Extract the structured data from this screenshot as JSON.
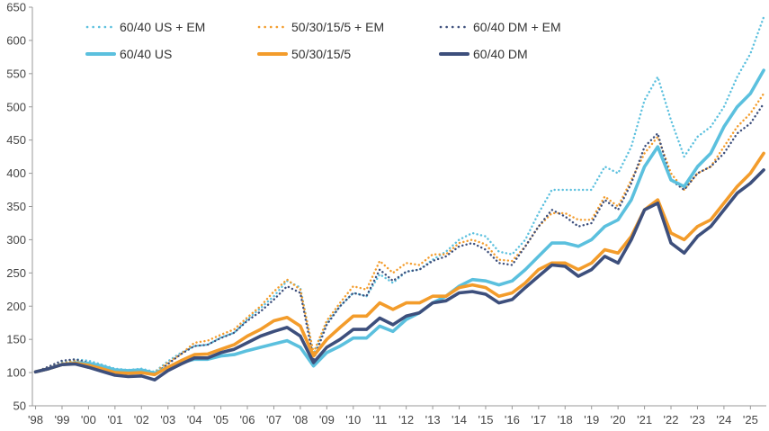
{
  "chart_data": {
    "type": "line",
    "title": "",
    "xlabel": "",
    "ylabel": "",
    "ylim": [
      50,
      650
    ],
    "yticks": [
      50,
      100,
      150,
      200,
      250,
      300,
      350,
      400,
      450,
      500,
      550,
      600,
      650
    ],
    "xlim": [
      1998,
      2025.6
    ],
    "xticks": [
      {
        "x": 1998,
        "label": "'98"
      },
      {
        "x": 1999,
        "label": "'99"
      },
      {
        "x": 2000,
        "label": "'00"
      },
      {
        "x": 2001,
        "label": "'01"
      },
      {
        "x": 2002,
        "label": "'02"
      },
      {
        "x": 2003,
        "label": "'03"
      },
      {
        "x": 2004,
        "label": "'04"
      },
      {
        "x": 2005,
        "label": "'05"
      },
      {
        "x": 2006,
        "label": "'06"
      },
      {
        "x": 2007,
        "label": "'07"
      },
      {
        "x": 2008,
        "label": "'08"
      },
      {
        "x": 2009,
        "label": "'09"
      },
      {
        "x": 2010,
        "label": "'10"
      },
      {
        "x": 2011,
        "label": "'11"
      },
      {
        "x": 2012,
        "label": "'12"
      },
      {
        "x": 2013,
        "label": "'13"
      },
      {
        "x": 2014,
        "label": "'14"
      },
      {
        "x": 2015,
        "label": "'15"
      },
      {
        "x": 2016,
        "label": "'16"
      },
      {
        "x": 2017,
        "label": "'17"
      },
      {
        "x": 2018,
        "label": "'18"
      },
      {
        "x": 2019,
        "label": "'19"
      },
      {
        "x": 2020,
        "label": "'20"
      },
      {
        "x": 2021,
        "label": "'21"
      },
      {
        "x": 2022,
        "label": "'22"
      },
      {
        "x": 2023,
        "label": "'23"
      },
      {
        "x": 2024,
        "label": "'24"
      },
      {
        "x": 2025,
        "label": "'25"
      }
    ],
    "grid": false,
    "legend_position": "top",
    "series": [
      {
        "name": "60/40 US + EM",
        "color": "#5bc0de",
        "style": "dotted",
        "x": [
          1998,
          1998.5,
          1999,
          1999.5,
          2000,
          2000.5,
          2001,
          2001.5,
          2002,
          2002.5,
          2003,
          2003.5,
          2004,
          2004.5,
          2005,
          2005.5,
          2006,
          2006.5,
          2007,
          2007.5,
          2008,
          2008.5,
          2009,
          2009.5,
          2010,
          2010.5,
          2011,
          2011.5,
          2012,
          2012.5,
          2013,
          2013.5,
          2014,
          2014.5,
          2015,
          2015.5,
          2016,
          2016.5,
          2017,
          2017.5,
          2018,
          2018.5,
          2019,
          2019.5,
          2020,
          2020.5,
          2021,
          2021.5,
          2022,
          2022.5,
          2023,
          2023.5,
          2024,
          2024.5,
          2025,
          2025.5
        ],
        "y": [
          101,
          108,
          116,
          120,
          118,
          112,
          106,
          104,
          106,
          101,
          117,
          130,
          140,
          142,
          153,
          160,
          180,
          197,
          215,
          238,
          228,
          128,
          175,
          200,
          220,
          215,
          248,
          235,
          252,
          255,
          270,
          282,
          300,
          310,
          305,
          282,
          278,
          300,
          340,
          375,
          375,
          375,
          375,
          410,
          400,
          440,
          510,
          545,
          480,
          425,
          455,
          470,
          500,
          545,
          580,
          635
        ]
      },
      {
        "name": "50/30/15/5 + EM",
        "color": "#f39c2b",
        "style": "dotted",
        "x": [
          1998,
          1998.5,
          1999,
          1999.5,
          2000,
          2000.5,
          2001,
          2001.5,
          2002,
          2002.5,
          2003,
          2003.5,
          2004,
          2004.5,
          2005,
          2005.5,
          2006,
          2006.5,
          2007,
          2007.5,
          2008,
          2008.5,
          2009,
          2009.5,
          2010,
          2010.5,
          2011,
          2011.5,
          2012,
          2012.5,
          2013,
          2013.5,
          2014,
          2014.5,
          2015,
          2015.5,
          2016,
          2016.5,
          2017,
          2017.5,
          2018,
          2018.5,
          2019,
          2019.5,
          2020,
          2020.5,
          2021,
          2021.5,
          2022,
          2022.5,
          2023,
          2023.5,
          2024,
          2024.5,
          2025,
          2025.5
        ],
        "y": [
          101,
          107,
          114,
          118,
          114,
          109,
          104,
          103,
          104,
          100,
          115,
          128,
          145,
          148,
          157,
          165,
          183,
          200,
          222,
          240,
          225,
          130,
          178,
          205,
          230,
          225,
          268,
          250,
          265,
          262,
          278,
          278,
          295,
          300,
          293,
          270,
          268,
          290,
          320,
          340,
          340,
          330,
          330,
          365,
          350,
          390,
          430,
          455,
          400,
          375,
          400,
          410,
          440,
          470,
          490,
          520
        ]
      },
      {
        "name": "60/40 DM + EM",
        "color": "#3d4f7c",
        "style": "dotted",
        "x": [
          1998,
          1998.5,
          1999,
          1999.5,
          2000,
          2000.5,
          2001,
          2001.5,
          2002,
          2002.5,
          2003,
          2003.5,
          2004,
          2004.5,
          2005,
          2005.5,
          2006,
          2006.5,
          2007,
          2007.5,
          2008,
          2008.5,
          2009,
          2009.5,
          2010,
          2010.5,
          2011,
          2011.5,
          2012,
          2012.5,
          2013,
          2013.5,
          2014,
          2014.5,
          2015,
          2015.5,
          2016,
          2016.5,
          2017,
          2017.5,
          2018,
          2018.5,
          2019,
          2019.5,
          2020,
          2020.5,
          2021,
          2021.5,
          2022,
          2022.5,
          2023,
          2023.5,
          2024,
          2024.5,
          2025,
          2025.5
        ],
        "y": [
          101,
          109,
          118,
          120,
          115,
          108,
          102,
          100,
          101,
          97,
          113,
          128,
          140,
          142,
          152,
          160,
          178,
          192,
          210,
          230,
          220,
          120,
          172,
          200,
          220,
          215,
          255,
          238,
          252,
          255,
          268,
          275,
          290,
          295,
          285,
          265,
          262,
          290,
          320,
          345,
          335,
          320,
          325,
          360,
          345,
          385,
          440,
          460,
          390,
          375,
          400,
          410,
          430,
          460,
          475,
          505
        ]
      },
      {
        "name": "60/40 US",
        "color": "#5bc0de",
        "style": "solid",
        "x": [
          1998,
          1998.5,
          1999,
          1999.5,
          2000,
          2000.5,
          2001,
          2001.5,
          2002,
          2002.5,
          2003,
          2003.5,
          2004,
          2004.5,
          2005,
          2005.5,
          2006,
          2006.5,
          2007,
          2007.5,
          2008,
          2008.5,
          2009,
          2009.5,
          2010,
          2010.5,
          2011,
          2011.5,
          2012,
          2012.5,
          2013,
          2013.5,
          2014,
          2014.5,
          2015,
          2015.5,
          2016,
          2016.5,
          2017,
          2017.5,
          2018,
          2018.5,
          2019,
          2019.5,
          2020,
          2020.5,
          2021,
          2021.5,
          2022,
          2022.5,
          2023,
          2023.5,
          2024,
          2024.5,
          2025,
          2025.5
        ],
        "y": [
          101,
          106,
          112,
          115,
          114,
          110,
          104,
          103,
          104,
          99,
          108,
          115,
          120,
          120,
          125,
          127,
          133,
          138,
          143,
          148,
          138,
          110,
          130,
          140,
          152,
          152,
          170,
          162,
          180,
          190,
          205,
          215,
          230,
          240,
          238,
          232,
          238,
          255,
          275,
          295,
          295,
          290,
          300,
          320,
          330,
          360,
          410,
          440,
          390,
          380,
          410,
          430,
          470,
          500,
          520,
          555
        ]
      },
      {
        "name": "50/30/15/5",
        "color": "#f39c2b",
        "style": "solid",
        "x": [
          1998,
          1998.5,
          1999,
          1999.5,
          2000,
          2000.5,
          2001,
          2001.5,
          2002,
          2002.5,
          2003,
          2003.5,
          2004,
          2004.5,
          2005,
          2005.5,
          2006,
          2006.5,
          2007,
          2007.5,
          2008,
          2008.5,
          2009,
          2009.5,
          2010,
          2010.5,
          2011,
          2011.5,
          2012,
          2012.5,
          2013,
          2013.5,
          2014,
          2014.5,
          2015,
          2015.5,
          2016,
          2016.5,
          2017,
          2017.5,
          2018,
          2018.5,
          2019,
          2019.5,
          2020,
          2020.5,
          2021,
          2021.5,
          2022,
          2022.5,
          2023,
          2023.5,
          2024,
          2024.5,
          2025,
          2025.5
        ],
        "y": [
          101,
          106,
          112,
          114,
          111,
          106,
          100,
          99,
          100,
          97,
          108,
          118,
          127,
          128,
          135,
          142,
          155,
          165,
          178,
          183,
          170,
          125,
          150,
          168,
          185,
          185,
          205,
          195,
          205,
          205,
          215,
          215,
          228,
          232,
          228,
          215,
          220,
          235,
          255,
          265,
          265,
          255,
          265,
          285,
          280,
          305,
          345,
          360,
          310,
          300,
          320,
          330,
          355,
          380,
          400,
          430
        ]
      },
      {
        "name": "60/40 DM",
        "color": "#3d4f7c",
        "style": "solid",
        "x": [
          1998,
          1998.5,
          1999,
          1999.5,
          2000,
          2000.5,
          2001,
          2001.5,
          2002,
          2002.5,
          2003,
          2003.5,
          2004,
          2004.5,
          2005,
          2005.5,
          2006,
          2006.5,
          2007,
          2007.5,
          2008,
          2008.5,
          2009,
          2009.5,
          2010,
          2010.5,
          2011,
          2011.5,
          2012,
          2012.5,
          2013,
          2013.5,
          2014,
          2014.5,
          2015,
          2015.5,
          2016,
          2016.5,
          2017,
          2017.5,
          2018,
          2018.5,
          2019,
          2019.5,
          2020,
          2020.5,
          2021,
          2021.5,
          2022,
          2022.5,
          2023,
          2023.5,
          2024,
          2024.5,
          2025,
          2025.5
        ],
        "y": [
          101,
          106,
          112,
          113,
          108,
          102,
          96,
          94,
          95,
          89,
          103,
          113,
          122,
          122,
          130,
          135,
          145,
          155,
          162,
          168,
          155,
          115,
          138,
          150,
          165,
          165,
          182,
          172,
          185,
          190,
          205,
          208,
          220,
          222,
          218,
          205,
          210,
          228,
          245,
          262,
          260,
          245,
          255,
          275,
          265,
          300,
          345,
          355,
          295,
          280,
          305,
          320,
          345,
          370,
          385,
          405
        ]
      }
    ]
  }
}
